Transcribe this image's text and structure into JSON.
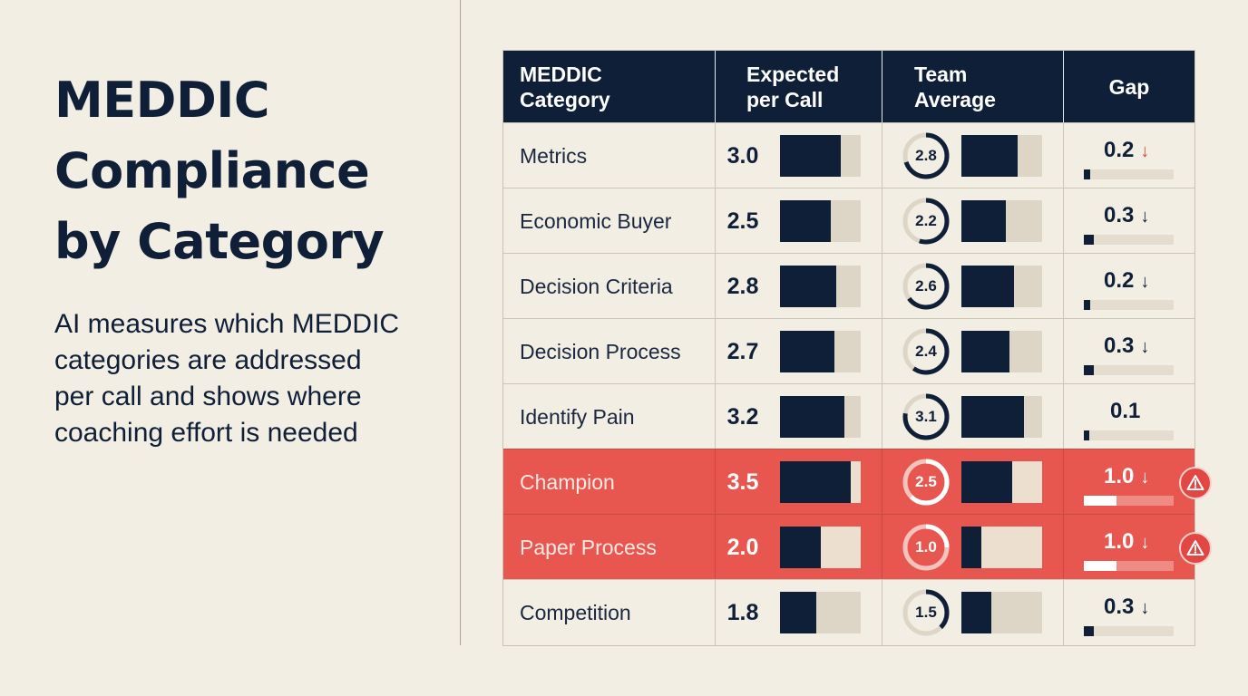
{
  "title_lines": [
    "MEDDIC",
    "Compliance",
    "by Category"
  ],
  "subtitle_lines": [
    "AI measures which MEDDIC",
    "categories are addressed",
    "per call and shows where",
    "coaching effort is needed"
  ],
  "chart_data": {
    "type": "table",
    "headers": {
      "category": [
        "MEDDIC",
        "Category"
      ],
      "expected": [
        "Expected",
        "per Call"
      ],
      "team": [
        "Team",
        "Average"
      ],
      "gap": [
        "Gap"
      ]
    },
    "columns": [
      "MEDDIC Category",
      "Expected per Call",
      "Team Average",
      "Gap"
    ],
    "bar_max": 4,
    "rows": [
      {
        "category": "Metrics",
        "expected": 3.0,
        "expected_text": "3.0",
        "team": 2.8,
        "team_text": "2.8",
        "gap": 0.2,
        "gap_text": "0.2",
        "arrow": "↓",
        "arrow_color": "red",
        "alert": false
      },
      {
        "category": "Economic Buyer",
        "expected": 2.5,
        "expected_text": "2.5",
        "team": 2.2,
        "team_text": "2.2",
        "gap": 0.3,
        "gap_text": "0.3",
        "arrow": "↓",
        "arrow_color": "dark",
        "alert": false
      },
      {
        "category": "Decision Criteria",
        "expected": 2.8,
        "expected_text": "2.8",
        "team": 2.6,
        "team_text": "2.6",
        "gap": 0.2,
        "gap_text": "0.2",
        "arrow": "↓",
        "arrow_color": "dark",
        "alert": false
      },
      {
        "category": "Decision Process",
        "expected": 2.7,
        "expected_text": "2.7",
        "team": 2.4,
        "team_text": "2.4",
        "gap": 0.3,
        "gap_text": "0.3",
        "arrow": "↓",
        "arrow_color": "dark",
        "alert": false
      },
      {
        "category": "Identify Pain",
        "expected": 3.2,
        "expected_text": "3.2",
        "team": 3.1,
        "team_text": "3.1",
        "gap": 0.1,
        "gap_text": "0.1",
        "arrow": "",
        "arrow_color": "dark",
        "alert": false
      },
      {
        "category": "Champion",
        "expected": 3.5,
        "expected_text": "3.5",
        "team": 2.5,
        "team_text": "2.5",
        "gap": 1.0,
        "gap_text": "1.0",
        "arrow": "↓",
        "arrow_color": "white",
        "alert": true
      },
      {
        "category": "Paper Process",
        "expected": 2.0,
        "expected_text": "2.0",
        "team": 1.0,
        "team_text": "1.0",
        "gap": 1.0,
        "gap_text": "1.0",
        "arrow": "↓",
        "arrow_color": "white",
        "alert": true
      },
      {
        "category": "Competition",
        "expected": 1.8,
        "expected_text": "1.8",
        "team": 1.5,
        "team_text": "1.5",
        "gap": 0.3,
        "gap_text": "0.3",
        "arrow": "↓",
        "arrow_color": "dark",
        "alert": false
      }
    ]
  },
  "colors": {
    "background": "#f3eee4",
    "navy": "#0f1f38",
    "alert_row": "#e8574f",
    "bar_track": "#ddd5c6",
    "warning_badge": "#e24743",
    "down_arrow_red": "#d9483f"
  },
  "icons": {
    "gap_arrow": "down-arrow-icon",
    "warning": "warning-triangle-icon"
  }
}
